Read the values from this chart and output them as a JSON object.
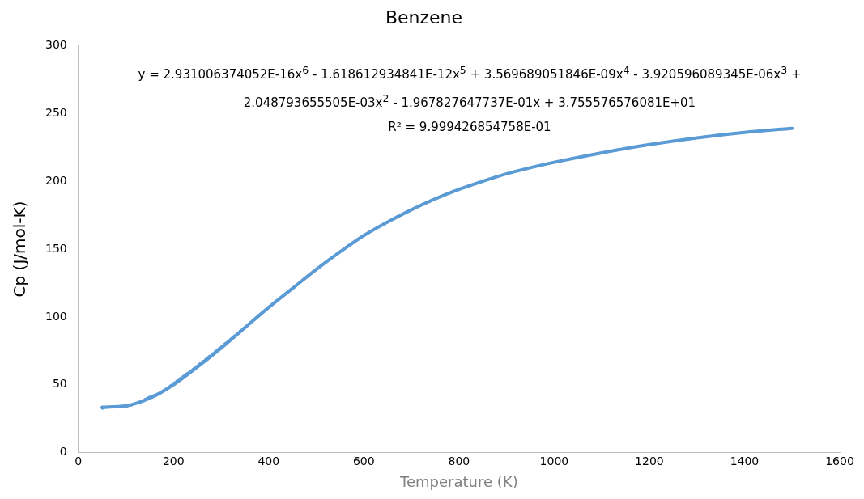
{
  "chart_data": {
    "type": "line",
    "title": "Benzene",
    "xlabel": "Temperature (K)",
    "ylabel": "Cp (J/mol-K)",
    "annotations": [
      "y = 2.931006374052E-16x$^{6}$ - 1.618612934841E-12x$^{5}$ + 3.569689051846E-09x$^{4}$ - 3.920596089345E-06x$^{3}$ + 2.048793655505E-03x$^{2}$ - 1.967827647737E-01x + 3.755576576081E+01",
      "R² = 9.999426854758E-01"
    ],
    "xlim": [
      0,
      1600
    ],
    "xticks": [
      0,
      200,
      400,
      600,
      800,
      1000,
      1200,
      1400,
      1600
    ],
    "ylim": [
      0,
      300
    ],
    "yticks": [
      0,
      50,
      100,
      150,
      200,
      250,
      300
    ],
    "grid": false,
    "legend": false,
    "marker": "none",
    "series": [
      {
        "type": "line",
        "color": "#5b9bd5",
        "line_style": "solid",
        "x": [
          50,
          100,
          150,
          200,
          250,
          300,
          350,
          400,
          450,
          500,
          550,
          600,
          650,
          700,
          750,
          800,
          850,
          900,
          950,
          1000,
          1100,
          1200,
          1300,
          1400,
          1500
        ],
        "values": [
          33.5,
          34.5,
          40,
          50,
          63,
          77,
          92,
          107,
          121,
          135,
          148,
          160,
          170,
          179,
          187,
          194,
          200,
          205.5,
          210,
          214,
          221,
          227,
          232,
          236,
          239
        ]
      },
      {
        "type": "line",
        "color": "#5b9bd5",
        "line_style": "dotted",
        "x": [
          50,
          75,
          100,
          125,
          150,
          175,
          200,
          250,
          300,
          350,
          400,
          450,
          500,
          550,
          600,
          650,
          700,
          750,
          800,
          850,
          900,
          950,
          1000,
          1100,
          1200,
          1300,
          1400,
          1500
        ],
        "values": [
          32.5,
          34,
          34,
          36.8,
          41,
          44.5,
          51,
          64,
          78,
          92.5,
          107,
          121,
          135,
          148,
          160,
          170,
          179,
          187,
          194,
          200,
          205.5,
          210,
          214,
          221,
          227,
          232,
          236,
          239
        ]
      }
    ]
  }
}
